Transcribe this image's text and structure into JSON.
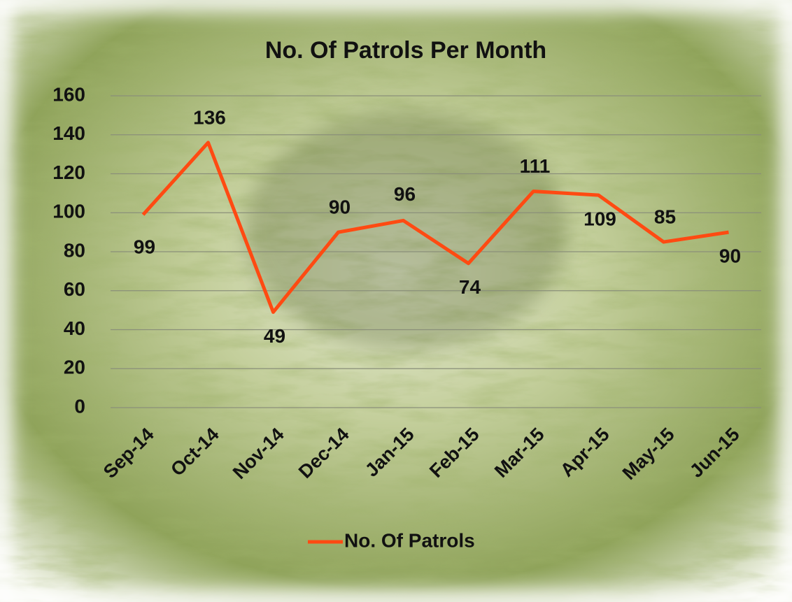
{
  "chart_data": {
    "type": "line",
    "title": "No. Of Patrols Per Month",
    "categories": [
      "Sep-14",
      "Oct-14",
      "Nov-14",
      "Dec-14",
      "Jan-15",
      "Feb-15",
      "Mar-15",
      "Apr-15",
      "May-15",
      "Jun-15"
    ],
    "series": [
      {
        "name": "No. Of Patrols",
        "color": "#ff4a12",
        "values": [
          99,
          136,
          49,
          90,
          96,
          74,
          111,
          109,
          85,
          90
        ]
      }
    ],
    "ylim": [
      0,
      160
    ],
    "yticks": [
      0,
      20,
      40,
      60,
      80,
      100,
      120,
      140,
      160
    ],
    "grid": true,
    "data_labels": true,
    "legend": "bottom"
  }
}
